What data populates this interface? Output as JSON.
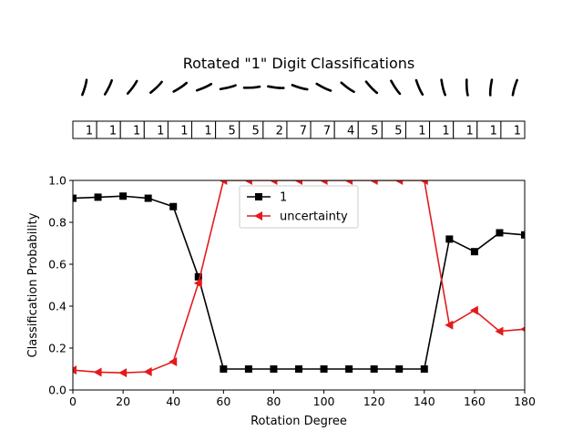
{
  "title": "Rotated \"1\" Digit Classifications",
  "colors": {
    "series_1": "#000000",
    "series_uncertainty": "#e41a1c",
    "glyph": "#000000",
    "background": "#ffffff"
  },
  "predictions_row": [
    "1",
    "1",
    "1",
    "1",
    "1",
    "1",
    "5",
    "5",
    "2",
    "7",
    "7",
    "4",
    "5",
    "5",
    "1",
    "1",
    "1",
    "1",
    "1"
  ],
  "glyph_description_icon": "rotated-digit-one-icon",
  "chart_data": {
    "type": "line",
    "title": "Rotated \"1\" Digit Classifications",
    "xlabel": "Rotation Degree",
    "ylabel": "Classification Probability",
    "xlim": [
      0,
      180
    ],
    "ylim": [
      0.0,
      1.0
    ],
    "x_ticks": [
      0,
      20,
      40,
      60,
      80,
      100,
      120,
      140,
      160,
      180
    ],
    "y_ticks": [
      0.0,
      0.2,
      0.4,
      0.6,
      0.8,
      1.0
    ],
    "x_tick_labels": [
      "0",
      "20",
      "40",
      "60",
      "80",
      "100",
      "120",
      "140",
      "160",
      "180"
    ],
    "y_tick_labels": [
      "0.0",
      "0.2",
      "0.4",
      "0.6",
      "0.8",
      "1.0"
    ],
    "grid": false,
    "legend_placement": "top-center",
    "x": [
      0,
      10,
      20,
      30,
      40,
      50,
      60,
      70,
      80,
      90,
      100,
      110,
      120,
      130,
      140,
      150,
      160,
      170,
      180
    ],
    "series": [
      {
        "name": "1",
        "marker": "square",
        "color": "#000000",
        "values": [
          0.915,
          0.92,
          0.925,
          0.915,
          0.875,
          0.54,
          0.1,
          0.1,
          0.1,
          0.1,
          0.1,
          0.1,
          0.1,
          0.1,
          0.1,
          0.72,
          0.66,
          0.75,
          0.74
        ]
      },
      {
        "name": "uncertainty",
        "marker": "triangle-left",
        "color": "#e41a1c",
        "values": [
          0.095,
          0.085,
          0.082,
          0.087,
          0.135,
          0.51,
          1.0,
          1.0,
          1.0,
          1.0,
          1.0,
          1.0,
          1.0,
          1.0,
          1.0,
          0.31,
          0.38,
          0.28,
          0.29
        ]
      }
    ]
  }
}
